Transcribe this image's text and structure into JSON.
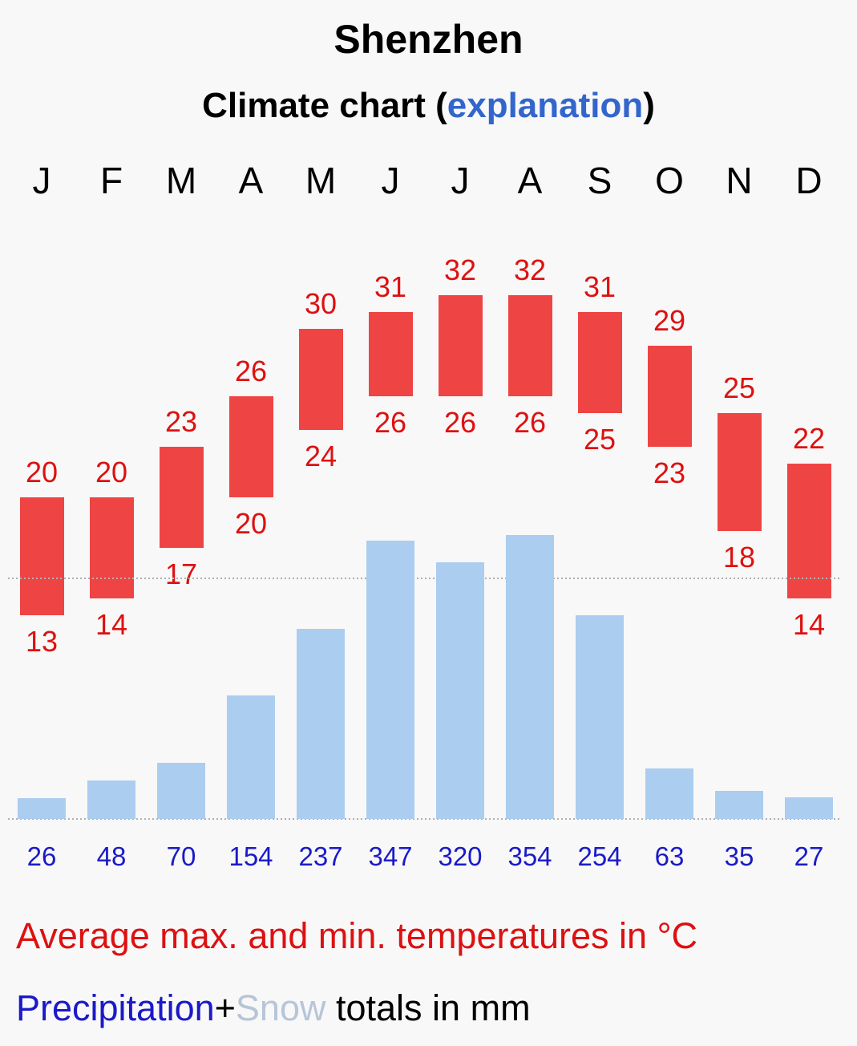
{
  "title": "Shenzhen",
  "subtitle": {
    "text": "Climate chart",
    "open_paren": "(",
    "link": "explanation",
    "close_paren": ")"
  },
  "chart_data": {
    "type": "bar",
    "title": "Shenzhen",
    "subtitle": "Climate chart (explanation)",
    "categories": [
      "J",
      "F",
      "M",
      "A",
      "M",
      "J",
      "J",
      "A",
      "S",
      "O",
      "N",
      "D"
    ],
    "series": [
      {
        "name": "Average max. temperature",
        "unit": "°C",
        "values": [
          20,
          20,
          23,
          26,
          30,
          31,
          32,
          32,
          31,
          29,
          25,
          22
        ]
      },
      {
        "name": "Average min. temperature",
        "unit": "°C",
        "values": [
          13,
          14,
          17,
          20,
          24,
          26,
          26,
          26,
          25,
          23,
          18,
          14
        ]
      },
      {
        "name": "Precipitation",
        "unit": "mm",
        "values": [
          26,
          48,
          70,
          154,
          237,
          347,
          320,
          354,
          254,
          63,
          35,
          27
        ]
      }
    ],
    "temperature_range": [
      10,
      40
    ],
    "precipitation_range": [
      0,
      400
    ],
    "precipitation_gridline": 300
  },
  "legend": {
    "temperature": "Average max. and min. temperatures in °C",
    "precip_word": "Precipitation",
    "plus": "+",
    "snow_word": "Snow",
    "totals": " totals in mm"
  },
  "colors": {
    "temp": "#ef4444",
    "temp_text": "#dd1111",
    "precip_bar": "#abcdef",
    "precip_text": "#1a1ac8",
    "link": "#3366cc",
    "grid": "#b0b0b0"
  }
}
